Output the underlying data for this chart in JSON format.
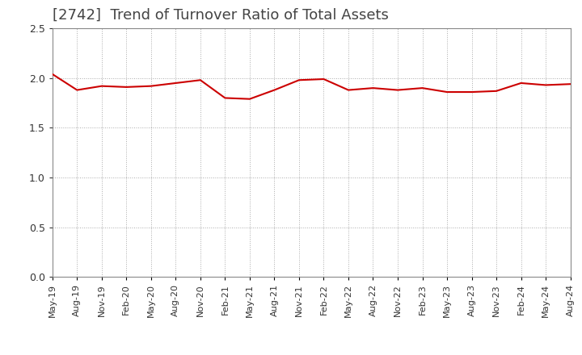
{
  "title": "[2742]  Trend of Turnover Ratio of Total Assets",
  "title_fontsize": 13,
  "title_color": "#444444",
  "background_color": "#ffffff",
  "plot_bg_color": "#ffffff",
  "grid_color": "#aaaaaa",
  "line_color": "#cc0000",
  "ylim": [
    0.0,
    2.5
  ],
  "yticks": [
    0.0,
    0.5,
    1.0,
    1.5,
    2.0,
    2.5
  ],
  "values": [
    2.04,
    1.88,
    1.92,
    1.91,
    1.92,
    1.95,
    1.98,
    1.8,
    1.79,
    1.88,
    1.98,
    1.99,
    1.88,
    1.9,
    1.88,
    1.9,
    1.86,
    1.86,
    1.87,
    1.95,
    1.93,
    1.94
  ],
  "xtick_labels": [
    "May-19",
    "Aug-19",
    "Nov-19",
    "Feb-20",
    "May-20",
    "Aug-20",
    "Nov-20",
    "Feb-21",
    "May-21",
    "Aug-21",
    "Nov-21",
    "Feb-22",
    "May-22",
    "Aug-22",
    "Nov-22",
    "Feb-23",
    "May-23",
    "Aug-23",
    "Nov-23",
    "Feb-24",
    "May-24",
    "Aug-24"
  ]
}
